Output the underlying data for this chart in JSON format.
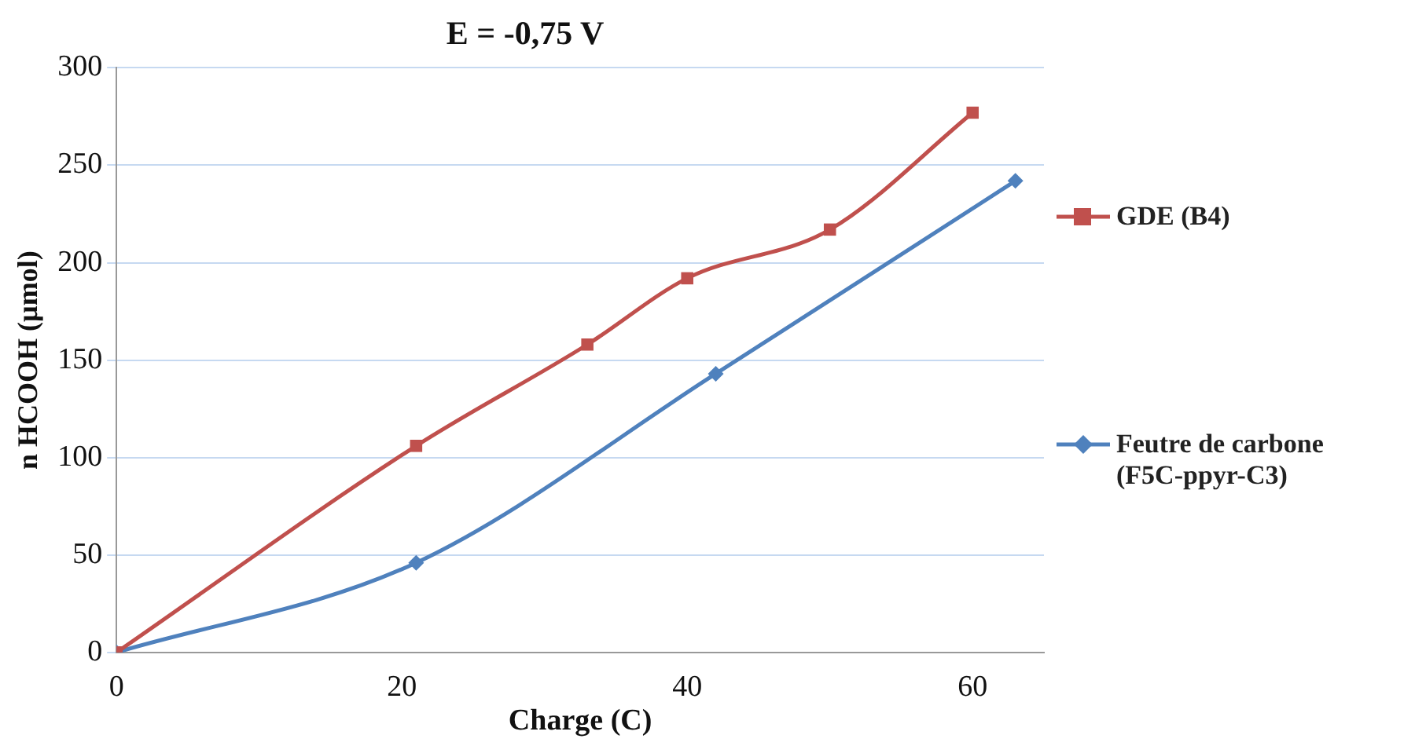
{
  "chart_data": {
    "type": "line",
    "title": "E = -0,75 V",
    "xlabel": "Charge (C)",
    "ylabel": "n HCOOH (µmol)",
    "xlim": [
      0,
      65
    ],
    "xticks": [
      0,
      20,
      40,
      60
    ],
    "ylim": [
      0,
      300
    ],
    "yticks": [
      0,
      50,
      100,
      150,
      200,
      250,
      300
    ],
    "grid": "y",
    "legend": "right",
    "series": [
      {
        "name": "GDE (B4)",
        "color": "#c0504d",
        "marker": "square",
        "x": [
          0,
          21,
          33,
          40,
          50,
          60
        ],
        "values": [
          0,
          106,
          158,
          192,
          217,
          277
        ]
      },
      {
        "name": "Feutre de carbone (F5C-ppyr-C3)",
        "color": "#4f81bd",
        "marker": "diamond",
        "x": [
          0,
          21,
          42,
          63
        ],
        "values": [
          0,
          46,
          143,
          242
        ]
      }
    ]
  }
}
